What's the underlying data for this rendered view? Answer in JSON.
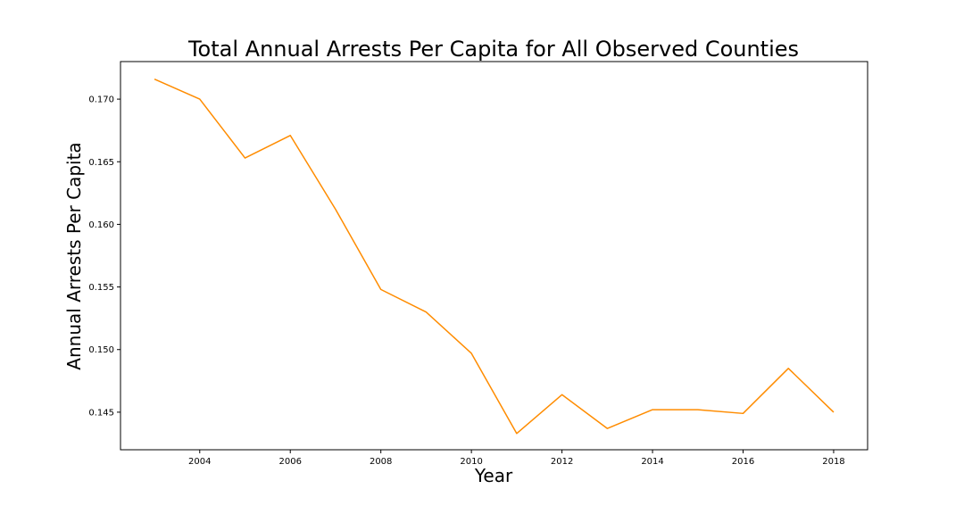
{
  "chart_data": {
    "type": "line",
    "title": "Total Annual Arrests Per Capita for All Observed Counties",
    "xlabel": "Year",
    "ylabel": "Annual Arrests Per Capita",
    "xlim": [
      2002.25,
      2018.75
    ],
    "ylim": [
      0.142,
      0.173
    ],
    "x_ticks": [
      2004,
      2006,
      2008,
      2010,
      2012,
      2014,
      2016,
      2018
    ],
    "x_tick_labels": [
      "2004",
      "2006",
      "2008",
      "2010",
      "2012",
      "2014",
      "2016",
      "2018"
    ],
    "y_ticks": [
      0.145,
      0.15,
      0.155,
      0.16,
      0.165,
      0.17
    ],
    "y_tick_labels": [
      "0.145",
      "0.150",
      "0.155",
      "0.160",
      "0.165",
      "0.170"
    ],
    "grid": false,
    "series": [
      {
        "color": "#ff8c00",
        "x": [
          2003,
          2004,
          2005,
          2006,
          2007,
          2008,
          2009,
          2010,
          2011,
          2012,
          2013,
          2014,
          2015,
          2016,
          2017,
          2018
        ],
        "y": [
          0.1716,
          0.17,
          0.1653,
          0.1671,
          0.1612,
          0.1548,
          0.153,
          0.1497,
          0.1433,
          0.1464,
          0.1437,
          0.1452,
          0.1452,
          0.1449,
          0.1485,
          0.145
        ]
      }
    ]
  }
}
